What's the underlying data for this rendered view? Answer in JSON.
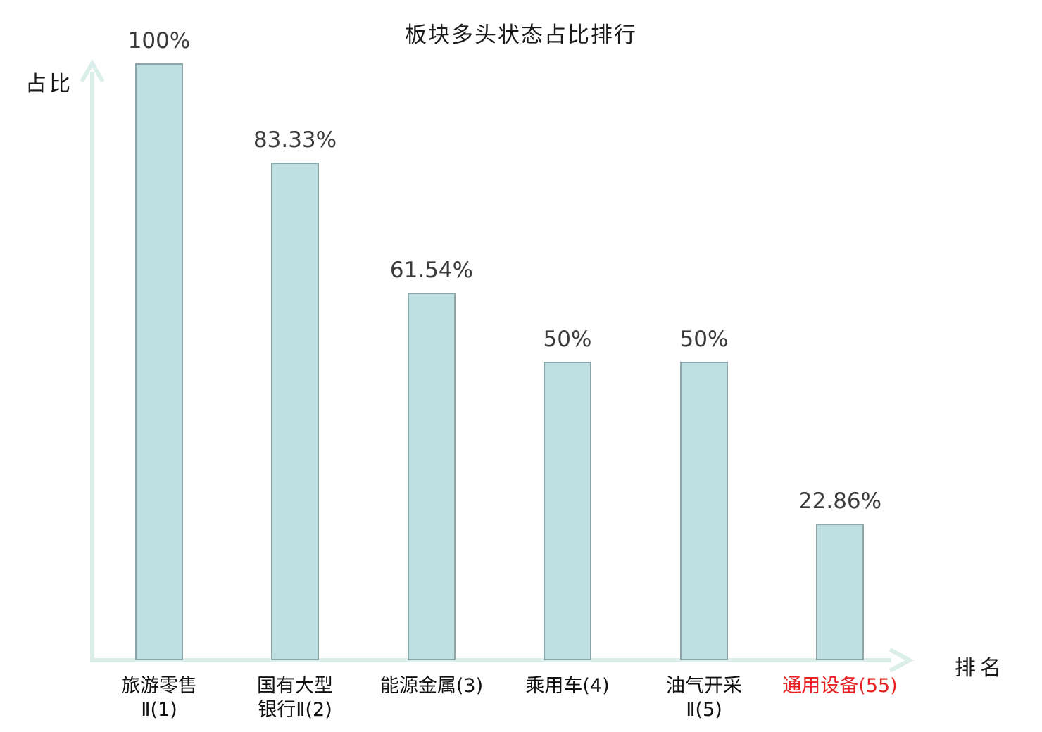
{
  "title": "板块多头状态占比排行",
  "axes": {
    "y_label": "占比",
    "x_label": "排名"
  },
  "colors": {
    "background": "#ffffff",
    "bar_fill": "#bfe0e3",
    "bar_border": "#8ca6aa",
    "axis_line": "#dceee9",
    "title_text": "#1a1a1a",
    "value_label_text": "#3b3b3b",
    "category_label_text": "#111111",
    "highlight_text": "#e62222"
  },
  "chart_data": {
    "type": "bar",
    "title": "板块多头状态占比排行",
    "xlabel": "排名",
    "ylabel": "占比",
    "categories": [
      "旅游零售Ⅱ(1)",
      "国有大型银行Ⅱ(2)",
      "能源金属(3)",
      "乘用车(4)",
      "油气开采Ⅱ(5)",
      "通用设备(55)"
    ],
    "category_label_lines": [
      [
        "旅游零售",
        "Ⅱ(1)"
      ],
      [
        "国有大型",
        "银行Ⅱ(2)"
      ],
      [
        "能源金属(3)"
      ],
      [
        "乘用车(4)"
      ],
      [
        "油气开采",
        "Ⅱ(5)"
      ],
      [
        "通用设备(55)"
      ]
    ],
    "values": [
      100,
      83.33,
      61.54,
      50,
      50,
      22.86
    ],
    "value_labels": [
      "100%",
      "83.33%",
      "61.54%",
      "50%",
      "50%",
      "22.86%"
    ],
    "highlighted_category_index": 5,
    "ylim": [
      0,
      100
    ],
    "grid": false,
    "legend": false,
    "axis_ticks": "none",
    "bar_color": "#bfe0e3"
  },
  "layout_note": "values plotted as percent of axis height"
}
